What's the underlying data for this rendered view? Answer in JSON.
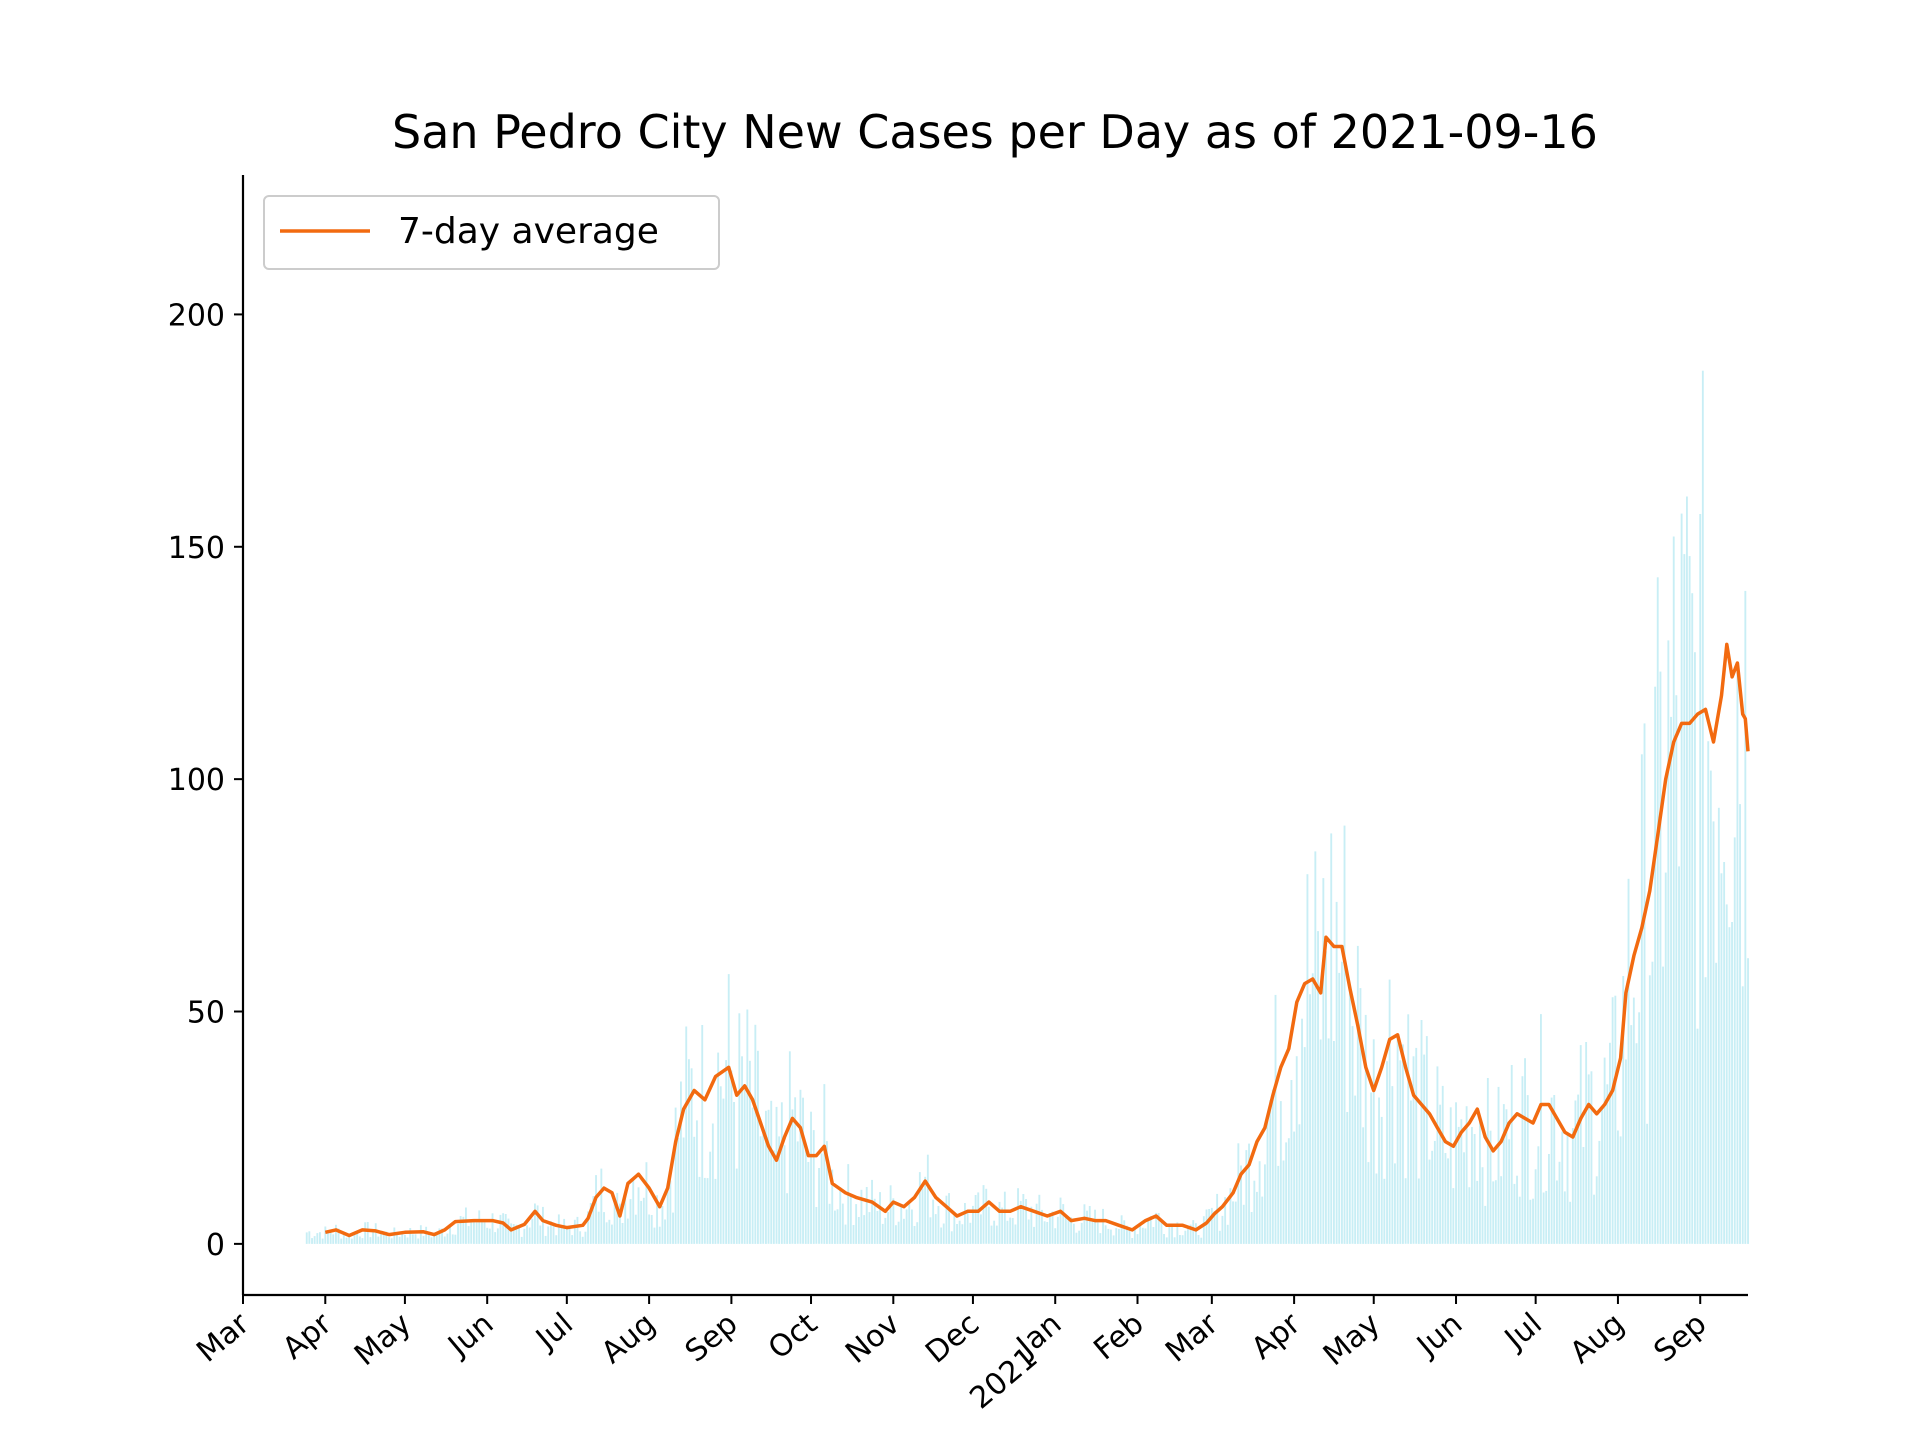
{
  "chart_data": {
    "type": "bar",
    "title": "San Pedro City New Cases per Day as of 2021-09-16",
    "xlabel": "",
    "ylabel": "",
    "ylim": [
      -11,
      230
    ],
    "xlim": [
      "2020-03-01",
      "2021-09-19"
    ],
    "grid": false,
    "legend": {
      "placement": "top-left",
      "entries": [
        {
          "label": "7-day average",
          "color": "#f26a10"
        }
      ]
    },
    "bar_color": "#c8eef5",
    "line_color": "#f26a10",
    "yticks": [
      0,
      50,
      100,
      150,
      200
    ],
    "xticks": [
      {
        "date": "2020-03-01",
        "label": "Mar"
      },
      {
        "date": "2020-04-01",
        "label": "Apr"
      },
      {
        "date": "2020-05-01",
        "label": "May"
      },
      {
        "date": "2020-06-01",
        "label": "Jun"
      },
      {
        "date": "2020-07-01",
        "label": "Jul"
      },
      {
        "date": "2020-08-01",
        "label": "Aug"
      },
      {
        "date": "2020-09-01",
        "label": "Sep"
      },
      {
        "date": "2020-10-01",
        "label": "Oct"
      },
      {
        "date": "2020-11-01",
        "label": "Nov"
      },
      {
        "date": "2020-12-01",
        "label": "Dec"
      },
      {
        "date": "2021-01-01",
        "label": "Jan\n2021"
      },
      {
        "date": "2021-02-01",
        "label": "Feb"
      },
      {
        "date": "2021-03-01",
        "label": "Mar"
      },
      {
        "date": "2021-04-01",
        "label": "Apr"
      },
      {
        "date": "2021-05-01",
        "label": "May"
      },
      {
        "date": "2021-06-01",
        "label": "Jun"
      },
      {
        "date": "2021-07-01",
        "label": "Jul"
      },
      {
        "date": "2021-08-01",
        "label": "Aug"
      },
      {
        "date": "2021-09-01",
        "label": "Sep"
      }
    ],
    "series": [
      {
        "name": "7-day average",
        "type": "line",
        "points": [
          [
            "2020-04-01",
            2.5
          ],
          [
            "2020-04-05",
            3.0
          ],
          [
            "2020-04-10",
            1.8
          ],
          [
            "2020-04-15",
            3.0
          ],
          [
            "2020-04-20",
            2.8
          ],
          [
            "2020-04-25",
            2.0
          ],
          [
            "2020-05-01",
            2.5
          ],
          [
            "2020-05-08",
            2.6
          ],
          [
            "2020-05-12",
            2.0
          ],
          [
            "2020-05-16",
            3.0
          ],
          [
            "2020-05-20",
            4.8
          ],
          [
            "2020-05-27",
            5.0
          ],
          [
            "2020-06-03",
            5.0
          ],
          [
            "2020-06-07",
            4.5
          ],
          [
            "2020-06-10",
            3.0
          ],
          [
            "2020-06-15",
            4.2
          ],
          [
            "2020-06-19",
            7.0
          ],
          [
            "2020-06-22",
            5.0
          ],
          [
            "2020-06-27",
            4.0
          ],
          [
            "2020-07-01",
            3.5
          ],
          [
            "2020-07-07",
            4.0
          ],
          [
            "2020-07-09",
            5.5
          ],
          [
            "2020-07-12",
            10.0
          ],
          [
            "2020-07-15",
            12.0
          ],
          [
            "2020-07-18",
            11.0
          ],
          [
            "2020-07-21",
            6.0
          ],
          [
            "2020-07-24",
            13.0
          ],
          [
            "2020-07-28",
            15.0
          ],
          [
            "2020-08-01",
            12.0
          ],
          [
            "2020-08-05",
            8.0
          ],
          [
            "2020-08-08",
            12.0
          ],
          [
            "2020-08-11",
            22.0
          ],
          [
            "2020-08-14",
            29.0
          ],
          [
            "2020-08-18",
            33.0
          ],
          [
            "2020-08-22",
            31.0
          ],
          [
            "2020-08-26",
            36.0
          ],
          [
            "2020-08-31",
            38.0
          ],
          [
            "2020-09-03",
            32.0
          ],
          [
            "2020-09-06",
            34.0
          ],
          [
            "2020-09-09",
            31.0
          ],
          [
            "2020-09-12",
            26.0
          ],
          [
            "2020-09-15",
            21.0
          ],
          [
            "2020-09-18",
            18.0
          ],
          [
            "2020-09-21",
            23.0
          ],
          [
            "2020-09-24",
            27.0
          ],
          [
            "2020-09-27",
            25.0
          ],
          [
            "2020-09-30",
            19.0
          ],
          [
            "2020-10-03",
            19.0
          ],
          [
            "2020-10-06",
            21.0
          ],
          [
            "2020-10-09",
            13.0
          ],
          [
            "2020-10-14",
            11.0
          ],
          [
            "2020-10-18",
            10.0
          ],
          [
            "2020-10-24",
            9.0
          ],
          [
            "2020-10-29",
            7.0
          ],
          [
            "2020-11-01",
            9.0
          ],
          [
            "2020-11-05",
            8.0
          ],
          [
            "2020-11-09",
            10.0
          ],
          [
            "2020-11-13",
            13.5
          ],
          [
            "2020-11-17",
            10.0
          ],
          [
            "2020-11-21",
            8.0
          ],
          [
            "2020-11-25",
            6.0
          ],
          [
            "2020-11-29",
            7.0
          ],
          [
            "2020-12-03",
            7.0
          ],
          [
            "2020-12-07",
            9.0
          ],
          [
            "2020-12-11",
            7.0
          ],
          [
            "2020-12-15",
            7.0
          ],
          [
            "2020-12-19",
            8.0
          ],
          [
            "2020-12-24",
            7.0
          ],
          [
            "2020-12-29",
            6.0
          ],
          [
            "2021-01-03",
            7.0
          ],
          [
            "2021-01-07",
            5.0
          ],
          [
            "2021-01-12",
            5.5
          ],
          [
            "2021-01-16",
            5.0
          ],
          [
            "2021-01-20",
            5.0
          ],
          [
            "2021-01-25",
            4.0
          ],
          [
            "2021-01-30",
            3.0
          ],
          [
            "2021-02-04",
            5.0
          ],
          [
            "2021-02-08",
            6.0
          ],
          [
            "2021-02-12",
            4.0
          ],
          [
            "2021-02-18",
            4.0
          ],
          [
            "2021-02-23",
            3.0
          ],
          [
            "2021-02-27",
            4.5
          ],
          [
            "2021-03-02",
            6.5
          ],
          [
            "2021-03-05",
            8.0
          ],
          [
            "2021-03-09",
            11.0
          ],
          [
            "2021-03-12",
            15.0
          ],
          [
            "2021-03-15",
            17.0
          ],
          [
            "2021-03-18",
            22.0
          ],
          [
            "2021-03-21",
            25.0
          ],
          [
            "2021-03-24",
            32.0
          ],
          [
            "2021-03-27",
            38.0
          ],
          [
            "2021-03-30",
            42.0
          ],
          [
            "2021-04-02",
            52.0
          ],
          [
            "2021-04-05",
            56.0
          ],
          [
            "2021-04-08",
            57.0
          ],
          [
            "2021-04-11",
            54.0
          ],
          [
            "2021-04-13",
            66.0
          ],
          [
            "2021-04-16",
            64.0
          ],
          [
            "2021-04-19",
            64.0
          ],
          [
            "2021-04-22",
            55.0
          ],
          [
            "2021-04-25",
            47.0
          ],
          [
            "2021-04-28",
            38.0
          ],
          [
            "2021-05-01",
            33.0
          ],
          [
            "2021-05-04",
            38.0
          ],
          [
            "2021-05-07",
            44.0
          ],
          [
            "2021-05-10",
            45.0
          ],
          [
            "2021-05-13",
            38.0
          ],
          [
            "2021-05-16",
            32.0
          ],
          [
            "2021-05-19",
            30.0
          ],
          [
            "2021-05-22",
            28.0
          ],
          [
            "2021-05-25",
            25.0
          ],
          [
            "2021-05-28",
            22.0
          ],
          [
            "2021-05-31",
            21.0
          ],
          [
            "2021-06-03",
            24.0
          ],
          [
            "2021-06-06",
            26.0
          ],
          [
            "2021-06-09",
            29.0
          ],
          [
            "2021-06-12",
            23.0
          ],
          [
            "2021-06-15",
            20.0
          ],
          [
            "2021-06-18",
            22.0
          ],
          [
            "2021-06-21",
            26.0
          ],
          [
            "2021-06-24",
            28.0
          ],
          [
            "2021-06-27",
            27.0
          ],
          [
            "2021-06-30",
            26.0
          ],
          [
            "2021-07-03",
            30.0
          ],
          [
            "2021-07-06",
            30.0
          ],
          [
            "2021-07-09",
            27.0
          ],
          [
            "2021-07-12",
            24.0
          ],
          [
            "2021-07-15",
            23.0
          ],
          [
            "2021-07-18",
            27.0
          ],
          [
            "2021-07-21",
            30.0
          ],
          [
            "2021-07-24",
            28.0
          ],
          [
            "2021-07-27",
            30.0
          ],
          [
            "2021-07-30",
            33.0
          ],
          [
            "2021-08-02",
            40.0
          ],
          [
            "2021-08-04",
            54.0
          ],
          [
            "2021-08-07",
            62.0
          ],
          [
            "2021-08-10",
            68.0
          ],
          [
            "2021-08-13",
            76.0
          ],
          [
            "2021-08-16",
            88.0
          ],
          [
            "2021-08-19",
            100.0
          ],
          [
            "2021-08-22",
            108.0
          ],
          [
            "2021-08-25",
            112.0
          ],
          [
            "2021-08-28",
            112.0
          ],
          [
            "2021-08-31",
            114.0
          ],
          [
            "2021-09-03",
            115.0
          ],
          [
            "2021-09-06",
            108.0
          ],
          [
            "2021-09-09",
            118.0
          ],
          [
            "2021-09-11",
            129.0
          ],
          [
            "2021-09-13",
            122.0
          ],
          [
            "2021-09-15",
            125.0
          ],
          [
            "2021-09-17",
            114.0
          ],
          [
            "2021-09-18",
            113.0
          ],
          [
            "2021-09-19",
            106.0
          ]
        ]
      }
    ]
  }
}
